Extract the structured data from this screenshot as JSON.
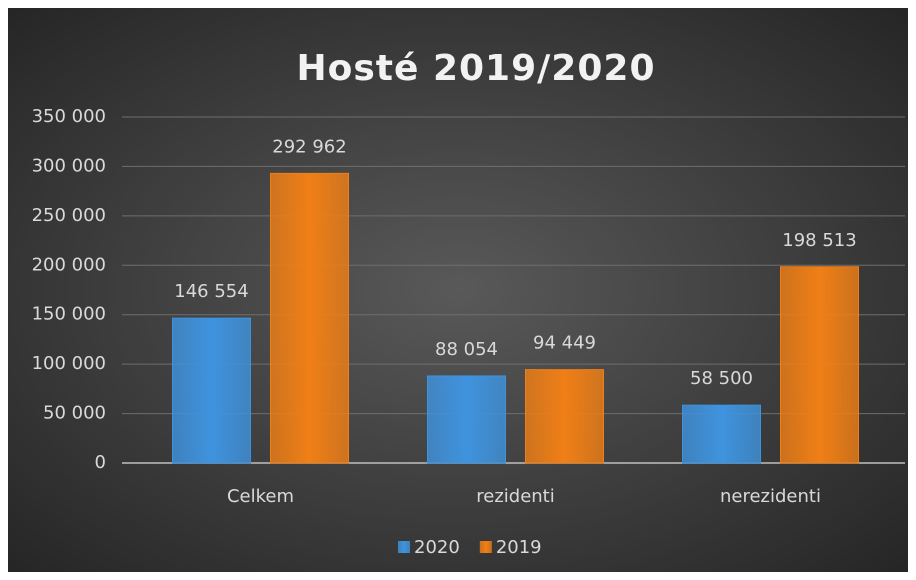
{
  "chart_data": {
    "type": "bar",
    "title": "Hosté 2019/2020",
    "categories": [
      "Celkem",
      "rezidenti",
      "nerezidenti"
    ],
    "series": [
      {
        "name": "2020",
        "color": "#3f93de",
        "values": [
          146554,
          88054,
          58500
        ],
        "value_labels": [
          "146 554",
          "88 054",
          "58 500"
        ]
      },
      {
        "name": "2019",
        "color": "#f07f16",
        "values": [
          292962,
          94449,
          198513
        ],
        "value_labels": [
          "292 962",
          "94 449",
          "198 513"
        ]
      }
    ],
    "ylim": [
      0,
      350000
    ],
    "yticks": [
      0,
      {
        "value": 50000,
        "label": "50 000"
      },
      {
        "value": 100000,
        "label": "100 000"
      },
      {
        "value": 150000,
        "label": "150 000"
      },
      {
        "value": 200000,
        "label": "200 000"
      },
      {
        "value": 250000,
        "label": "250 000"
      },
      {
        "value": 300000,
        "label": "300 000"
      },
      {
        "value": 350000,
        "label": "350 000"
      }
    ],
    "grid": true,
    "legend": "bottom"
  }
}
